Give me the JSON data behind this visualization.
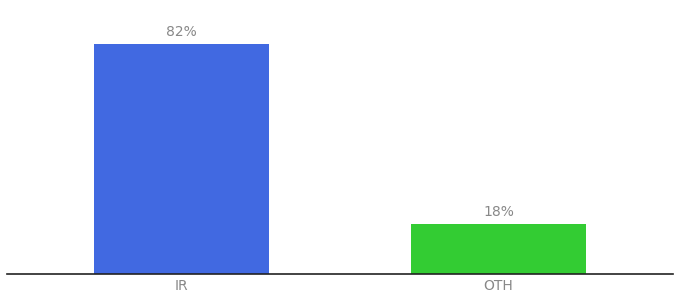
{
  "categories": [
    "IR",
    "OTH"
  ],
  "values": [
    82,
    18
  ],
  "bar_colors": [
    "#4169e1",
    "#33cc33"
  ],
  "label_texts": [
    "82%",
    "18%"
  ],
  "background_color": "#ffffff",
  "bar_width": 0.55,
  "label_fontsize": 10,
  "tick_fontsize": 10,
  "label_color": "#888888",
  "tick_color": "#888888",
  "spine_color": "#222222"
}
